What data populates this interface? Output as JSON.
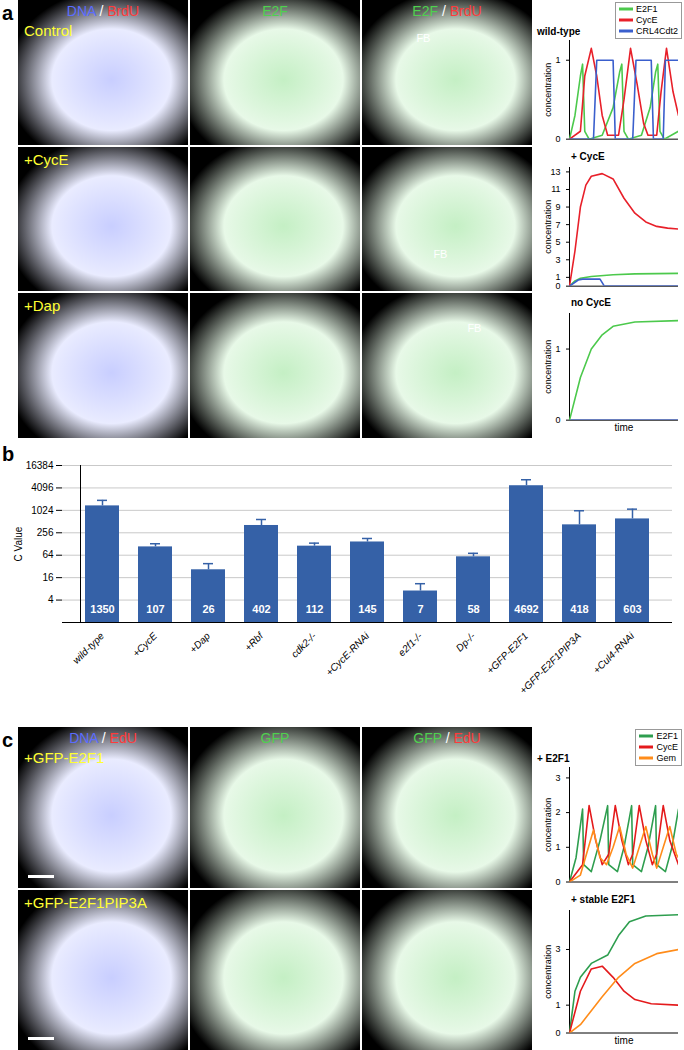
{
  "panels": [
    {
      "label": "a",
      "micrograph": {
        "columns": [
          [
            {
              "text": "DNA",
              "color": "#5b6cff"
            },
            {
              "text": "/",
              "color": "#ffffff"
            },
            {
              "text": "BrdU",
              "color": "#ff3b3b"
            }
          ],
          [
            {
              "text": "E2F",
              "color": "#4fd04f"
            }
          ],
          [
            {
              "text": "E2F",
              "color": "#4fd04f"
            },
            {
              "text": "/",
              "color": "#ffffff"
            },
            {
              "text": "BrdU",
              "color": "#ff3b3b"
            }
          ]
        ],
        "rows": [
          {
            "label": "Control",
            "annotations": [
              null,
              null,
              "FB"
            ]
          },
          {
            "label": "+CycE",
            "annotations": [
              null,
              null,
              "FB"
            ]
          },
          {
            "label": "+Dap",
            "annotations": [
              null,
              null,
              "FB"
            ]
          }
        ]
      }
    },
    {
      "label": "b"
    },
    {
      "label": "c",
      "micrograph": {
        "columns": [
          [
            {
              "text": "DNA",
              "color": "#5b6cff"
            },
            {
              "text": "/",
              "color": "#ffffff"
            },
            {
              "text": "EdU",
              "color": "#ff3b3b"
            }
          ],
          [
            {
              "text": "GFP",
              "color": "#4fd04f"
            }
          ],
          [
            {
              "text": "GFP",
              "color": "#4fd04f"
            },
            {
              "text": "/",
              "color": "#ffffff"
            },
            {
              "text": "EdU",
              "color": "#ff3b3b"
            }
          ]
        ],
        "rows": [
          {
            "label": "+GFP-E2F1"
          },
          {
            "label": "+GFP-E2F1PIP3A"
          }
        ]
      }
    }
  ],
  "chart_data": [
    {
      "type": "line",
      "title": "wild-type",
      "ylabel": "concentration",
      "xlim": [
        0,
        100
      ],
      "ylim": [
        0,
        1.25
      ],
      "yticks": [
        0,
        1
      ],
      "tick_labels": "y",
      "legend": "top-right",
      "series": [
        {
          "name": "E2F1",
          "color": "#4cc94c",
          "x": [
            0,
            5,
            10,
            12,
            14,
            18,
            30,
            40,
            46,
            48,
            50,
            54,
            66,
            74,
            79,
            81,
            83,
            87,
            100
          ],
          "values": [
            0,
            0.3,
            0.8,
            0.95,
            0.1,
            0,
            0.05,
            0.4,
            0.85,
            0.95,
            0.1,
            0,
            0.05,
            0.4,
            0.85,
            0.95,
            0.1,
            0,
            0.1
          ]
        },
        {
          "name": "CycE",
          "color": "#e8202a",
          "x": [
            0,
            10,
            14,
            20,
            25,
            30,
            35,
            45,
            50,
            56,
            62,
            68,
            72,
            80,
            84,
            89,
            95,
            100
          ],
          "values": [
            0,
            0.1,
            0.8,
            1.15,
            0.8,
            0.3,
            0.05,
            0.05,
            0.5,
            1.15,
            0.7,
            0.2,
            0.05,
            0.05,
            0.6,
            1.15,
            0.6,
            0.3
          ]
        },
        {
          "name": "CRL4Cdt2",
          "color": "#3a5fcd",
          "x": [
            0,
            22,
            25,
            40,
            42,
            58,
            61,
            75,
            77,
            86,
            88,
            100
          ],
          "values": [
            0,
            0,
            1,
            1,
            0,
            0,
            1,
            1,
            0,
            0,
            1,
            1
          ]
        }
      ]
    },
    {
      "type": "line",
      "title": "+ CycE",
      "ylabel": "concentration",
      "xlim": [
        0,
        100
      ],
      "ylim": [
        0,
        13.5
      ],
      "yticks": [
        0,
        1,
        3,
        5,
        7,
        9,
        11,
        13
      ],
      "tick_labels": "y",
      "series": [
        {
          "name": "E2F1",
          "color": "#4cc94c",
          "x": [
            0,
            5,
            10,
            20,
            40,
            60,
            100
          ],
          "values": [
            0,
            0.6,
            0.9,
            1.1,
            1.3,
            1.4,
            1.45
          ]
        },
        {
          "name": "CycE",
          "color": "#e8202a",
          "x": [
            0,
            5,
            10,
            15,
            20,
            30,
            40,
            50,
            60,
            70,
            80,
            90,
            100
          ],
          "values": [
            0,
            4,
            9,
            11.5,
            12.5,
            12.8,
            12.2,
            10,
            8.3,
            7.3,
            6.8,
            6.6,
            6.5
          ]
        },
        {
          "name": "CRL4Cdt2",
          "color": "#3a5fcd",
          "x": [
            0,
            8,
            12,
            28,
            32,
            100
          ],
          "values": [
            0,
            0.7,
            0.8,
            0.8,
            0,
            0
          ]
        }
      ]
    },
    {
      "type": "line",
      "title": "no CycE",
      "ylabel": "concentration",
      "xlabel": "time",
      "xlim": [
        0,
        100
      ],
      "ylim": [
        0,
        1.5
      ],
      "yticks": [
        0,
        1
      ],
      "tick_labels": "y",
      "series": [
        {
          "name": "CRL4Cdt2",
          "color": "#3a5fcd",
          "x": [
            0,
            100
          ],
          "values": [
            0,
            0
          ]
        },
        {
          "name": "E2F1",
          "color": "#4cc94c",
          "x": [
            0,
            10,
            20,
            30,
            40,
            60,
            100
          ],
          "values": [
            0,
            0.6,
            1.0,
            1.2,
            1.32,
            1.38,
            1.4
          ]
        }
      ]
    },
    {
      "type": "bar",
      "ylabel": "C Value",
      "log": "y",
      "grid": true,
      "data_labels": true,
      "color": "#3561a7",
      "categories": [
        "wild-type",
        "+CycE",
        "+Dap",
        "+Rbf",
        "cdk2-/-",
        "+CycE-RNAi",
        "e2f1-/-",
        "Dp-/-",
        "+GFP-E2F1",
        "+GFP-E2F1PIP3A",
        "+Cul4-RNAi"
      ],
      "values": [
        1350,
        107,
        26,
        402,
        112,
        145,
        7,
        58,
        4692,
        418,
        603
      ],
      "errors": [
        550,
        23,
        12,
        180,
        23,
        35,
        4,
        14,
        2100,
        580,
        500
      ],
      "ylim": [
        1,
        16384
      ],
      "yticks": [
        4,
        16,
        64,
        256,
        1024,
        4096,
        16384
      ]
    },
    {
      "type": "line",
      "title": "+ E2F1",
      "ylabel": "concentration",
      "xlim": [
        0,
        100
      ],
      "ylim": [
        0,
        3.3
      ],
      "yticks": [
        0,
        1,
        2,
        3
      ],
      "tick_labels": "y",
      "legend": "top-right",
      "series": [
        {
          "name": "E2F1",
          "color": "#2e9e4f",
          "x": [
            0,
            6,
            12,
            13,
            20,
            28,
            35,
            36,
            44,
            50,
            57,
            58,
            66,
            72,
            79,
            80,
            88,
            94,
            100
          ],
          "values": [
            0,
            0.7,
            2.1,
            0.5,
            0.3,
            1.2,
            2.2,
            0.5,
            0.3,
            1.0,
            2.2,
            0.5,
            0.3,
            1.0,
            2.2,
            0.5,
            0.3,
            1.0,
            2.1
          ]
        },
        {
          "name": "CycE",
          "color": "#e41a1c",
          "x": [
            0,
            12,
            18,
            24,
            30,
            36,
            42,
            48,
            54,
            58,
            64,
            70,
            76,
            80,
            86,
            92,
            100
          ],
          "values": [
            0,
            0.5,
            2.2,
            1.2,
            0.5,
            0.8,
            2.2,
            1.2,
            0.5,
            0.8,
            2.2,
            1.2,
            0.5,
            0.8,
            2.2,
            1.2,
            0.5
          ]
        },
        {
          "name": "Gem",
          "color": "#ff8c1a",
          "x": [
            0,
            10,
            22,
            28,
            34,
            40,
            46,
            52,
            58,
            64,
            70,
            76,
            80,
            86,
            92,
            98,
            100
          ],
          "values": [
            0,
            0.2,
            1.5,
            0.7,
            0.5,
            1.0,
            1.6,
            0.8,
            0.4,
            1.0,
            1.6,
            0.8,
            0.4,
            1.0,
            1.6,
            0.8,
            0.7
          ]
        }
      ]
    },
    {
      "type": "line",
      "title": "+ stable E2F1",
      "ylabel": "concentration",
      "xlabel": "time",
      "xlim": [
        0,
        100
      ],
      "ylim": [
        0,
        4.4
      ],
      "yticks": [
        0,
        1,
        3
      ],
      "tick_labels": "y",
      "series": [
        {
          "name": "E2F1",
          "color": "#2e9e4f",
          "x": [
            0,
            5,
            10,
            20,
            35,
            45,
            55,
            70,
            100
          ],
          "values": [
            0,
            1.5,
            2.0,
            2.5,
            2.8,
            3.5,
            4.0,
            4.2,
            4.25
          ]
        },
        {
          "name": "CycE",
          "color": "#e41a1c",
          "x": [
            0,
            10,
            20,
            30,
            40,
            50,
            60,
            75,
            100
          ],
          "values": [
            0,
            1.5,
            2.3,
            2.4,
            2.0,
            1.5,
            1.2,
            1.05,
            1.0
          ]
        },
        {
          "name": "Gem",
          "color": "#ff8c1a",
          "x": [
            0,
            10,
            20,
            30,
            45,
            60,
            80,
            100
          ],
          "values": [
            0,
            0.3,
            0.8,
            1.3,
            2.0,
            2.5,
            2.85,
            3.0
          ]
        }
      ]
    }
  ]
}
